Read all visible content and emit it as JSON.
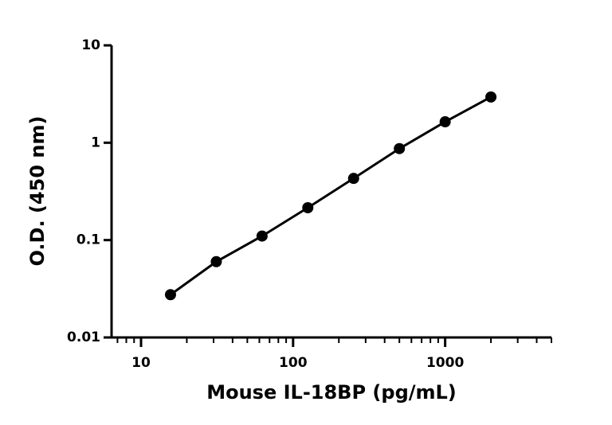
{
  "chart_data": {
    "type": "scatter",
    "x_label": "Mouse IL-18BP (pg/mL)",
    "y_label": "O.D. (450 nm)",
    "x": [
      15.625,
      31.25,
      62.5,
      125,
      250,
      500,
      1000,
      2000
    ],
    "series": [
      {
        "color": "#000000",
        "line": true,
        "values": [
          0.0275,
          0.06,
          0.11,
          0.215,
          0.43,
          0.87,
          1.64,
          2.95
        ]
      }
    ],
    "xscale": "log",
    "yscale": "log",
    "xlim": [
      6.4,
      5000
    ],
    "ylim": [
      0.01,
      10
    ],
    "xticks": [
      10,
      100,
      1000
    ],
    "xminorticks": [
      7,
      8,
      9,
      20,
      30,
      40,
      50,
      60,
      70,
      80,
      90,
      200,
      300,
      400,
      500,
      600,
      700,
      800,
      900,
      2000,
      3000,
      4000,
      5000
    ],
    "yticks": [
      0.01,
      0.1,
      1,
      10
    ]
  }
}
